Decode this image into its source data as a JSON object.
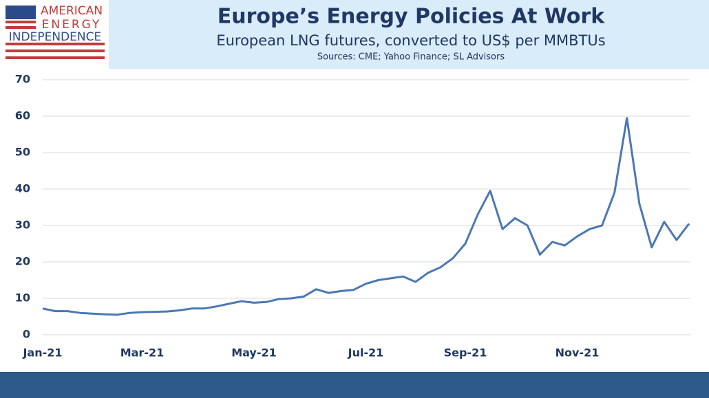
{
  "logo": {
    "lines": [
      "AMERICAN",
      "ENERGY",
      "INDEPENDENCE"
    ]
  },
  "chart_data": {
    "type": "line",
    "title": "Europe’s Energy Policies At Work",
    "subtitle": "European LNG futures, converted to US$ per MMBTUs",
    "sources": "Sources: CME; Yahoo Finance; SL Advisors",
    "categories": [
      "Jan-21",
      null,
      null,
      null,
      null,
      null,
      null,
      null,
      "Mar-21",
      null,
      null,
      null,
      null,
      null,
      null,
      null,
      null,
      "May-21",
      null,
      null,
      null,
      null,
      null,
      null,
      null,
      null,
      "Jul-21",
      null,
      null,
      null,
      null,
      null,
      null,
      null,
      "Sep-21",
      null,
      null,
      null,
      null,
      null,
      null,
      null,
      null,
      "Nov-21",
      null,
      null,
      null,
      null,
      null,
      null,
      null,
      null,
      null
    ],
    "series": [
      {
        "name": "European LNG futures",
        "color": "#4a78b5",
        "values": [
          7.2,
          6.5,
          6.5,
          6.0,
          5.8,
          5.6,
          5.5,
          6.0,
          6.2,
          6.3,
          6.4,
          6.7,
          7.2,
          7.2,
          7.8,
          8.5,
          9.2,
          8.8,
          9.0,
          9.8,
          10.0,
          10.5,
          12.5,
          11.5,
          12.0,
          12.3,
          14.0,
          15.0,
          15.5,
          16.0,
          14.5,
          17.0,
          18.5,
          21.0,
          25.0,
          33.0,
          39.5,
          29.0,
          32.0,
          30.0,
          22.0,
          25.5,
          24.5,
          27.0,
          29.0,
          30.0,
          39.0,
          59.5,
          36.0,
          24.0,
          31.0,
          26.0,
          30.5
        ]
      }
    ],
    "ylim": [
      0,
      70
    ],
    "yticks": [
      0,
      10,
      20,
      30,
      40,
      50,
      60,
      70
    ],
    "grid": true
  }
}
